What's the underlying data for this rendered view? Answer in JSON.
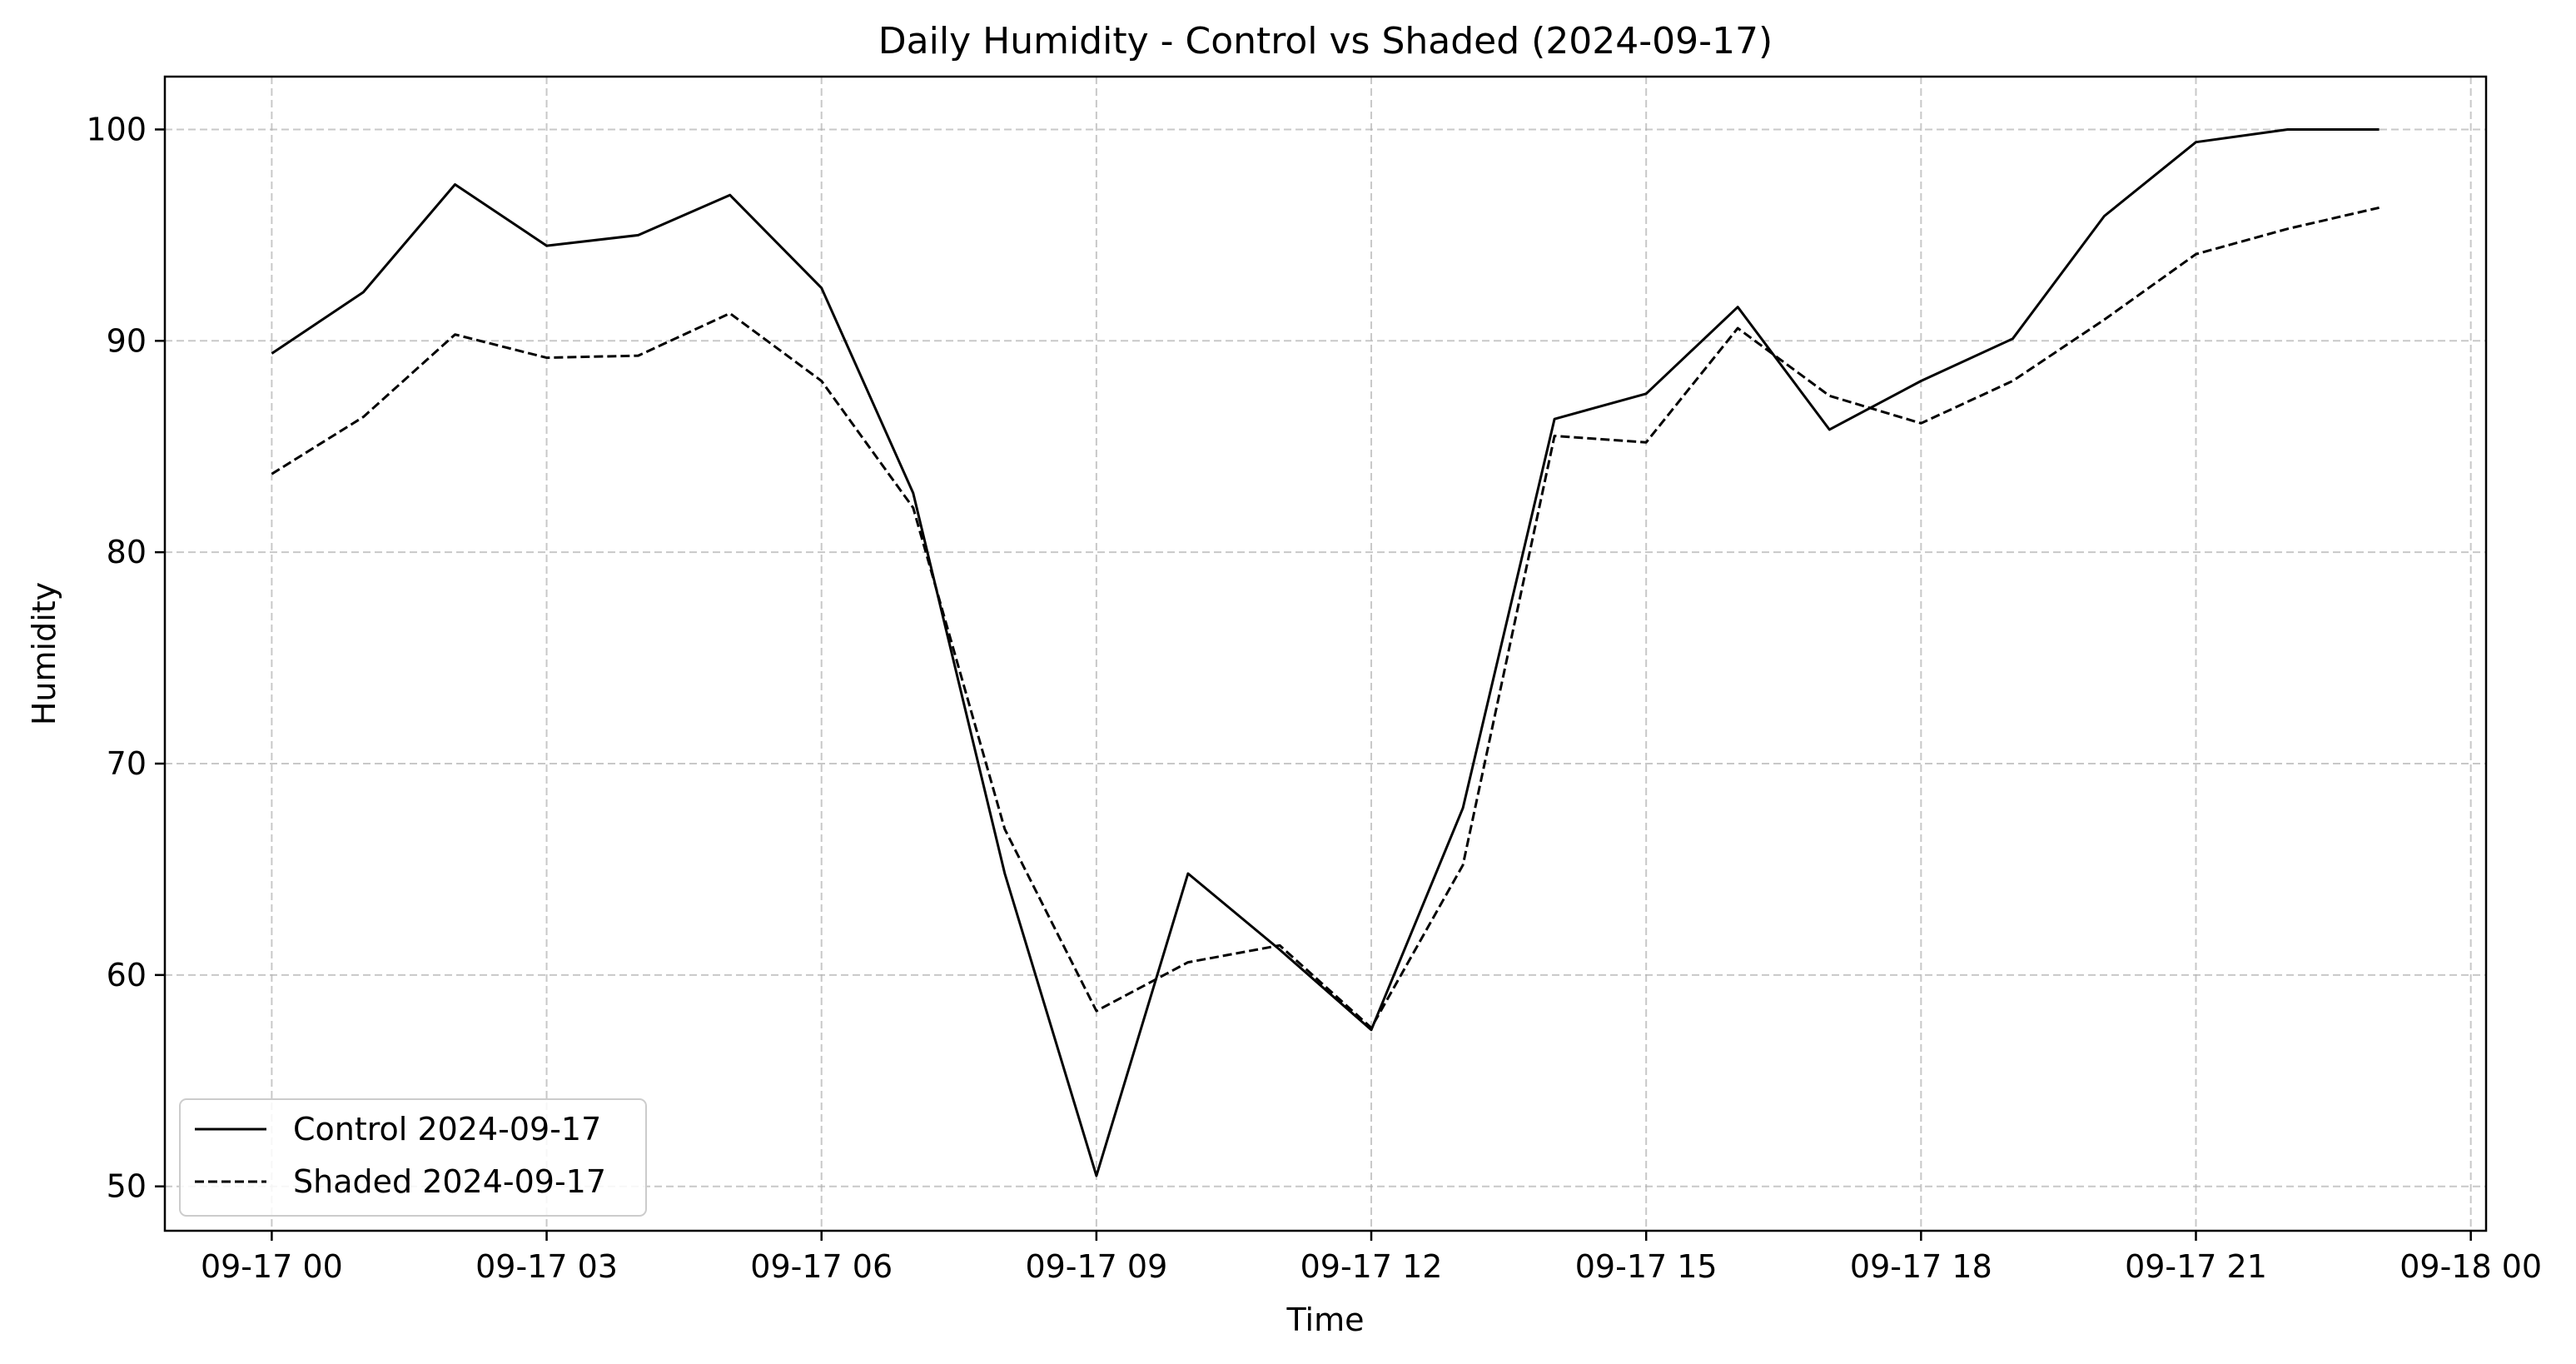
{
  "chart_data": {
    "type": "line",
    "title": "Daily Humidity - Control vs Shaded (2024-09-17)",
    "xlabel": "Time",
    "ylabel": "Humidity",
    "x": [
      "2024-09-17 00:00",
      "2024-09-17 01:00",
      "2024-09-17 02:00",
      "2024-09-17 03:00",
      "2024-09-17 04:00",
      "2024-09-17 05:00",
      "2024-09-17 06:00",
      "2024-09-17 07:00",
      "2024-09-17 08:00",
      "2024-09-17 09:00",
      "2024-09-17 10:00",
      "2024-09-17 11:00",
      "2024-09-17 12:00",
      "2024-09-17 13:00",
      "2024-09-17 14:00",
      "2024-09-17 15:00",
      "2024-09-17 16:00",
      "2024-09-17 17:00",
      "2024-09-17 18:00",
      "2024-09-17 19:00",
      "2024-09-17 20:00",
      "2024-09-17 21:00",
      "2024-09-17 22:00",
      "2024-09-17 23:00"
    ],
    "x_tick_labels": [
      "09-17 00",
      "09-17 03",
      "09-17 06",
      "09-17 09",
      "09-17 12",
      "09-17 15",
      "09-17 18",
      "09-17 21",
      "09-18 00"
    ],
    "y_ticks": [
      50,
      60,
      70,
      80,
      90,
      100
    ],
    "xlim": [
      "2024-09-16 22:50",
      "2024-09-18 00:10"
    ],
    "ylim": [
      47.9,
      102.5
    ],
    "grid": true,
    "legend_position": "lower-left",
    "series": [
      {
        "name": "Control 2024-09-17",
        "line_style": "solid",
        "color": "#000000",
        "values": [
          89.4,
          92.3,
          97.4,
          94.5,
          95.0,
          96.9,
          92.5,
          82.8,
          64.8,
          50.5,
          64.8,
          61.2,
          57.4,
          67.9,
          86.3,
          87.5,
          91.6,
          85.8,
          88.1,
          90.1,
          95.9,
          99.4,
          100.0,
          100.0
        ]
      },
      {
        "name": "Shaded 2024-09-17",
        "line_style": "dashed",
        "color": "#000000",
        "values": [
          83.7,
          86.4,
          90.3,
          89.2,
          89.3,
          91.3,
          88.1,
          82.1,
          66.9,
          58.3,
          60.6,
          61.4,
          57.5,
          65.2,
          85.5,
          85.2,
          90.6,
          87.4,
          86.1,
          88.1,
          91.0,
          94.1,
          95.3,
          96.3
        ]
      }
    ]
  },
  "colors": {
    "line": "#000000",
    "grid": "#b0b0b0",
    "background": "#ffffff",
    "axes": "#000000"
  }
}
